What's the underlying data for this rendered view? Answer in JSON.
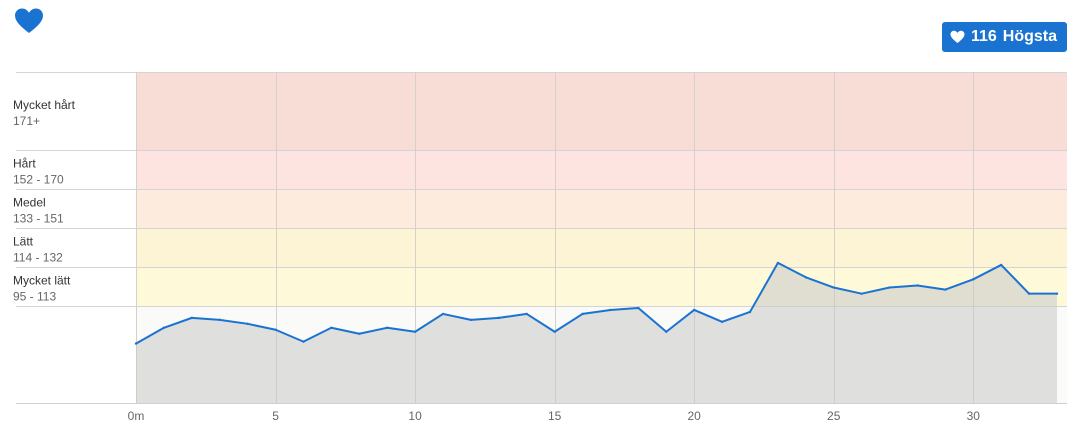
{
  "header": {
    "max_badge_value": "116",
    "max_badge_label": "Högsta",
    "accent": "#1a73d1"
  },
  "zones": [
    {
      "name": "Mycket hårt",
      "range": "171+",
      "from": 171,
      "to": 190,
      "color": "#f8ddd7"
    },
    {
      "name": "Hårt",
      "range": "152 - 170",
      "from": 152,
      "to": 171,
      "color": "#fde4e1"
    },
    {
      "name": "Medel",
      "range": "133 - 151",
      "from": 133,
      "to": 152,
      "color": "#fdebdd"
    },
    {
      "name": "Lätt",
      "range": "114 - 132",
      "from": 114,
      "to": 133,
      "color": "#fdf4d6"
    },
    {
      "name": "Mycket lätt",
      "range": "95 - 113",
      "from": 95,
      "to": 114,
      "color": "#fdf9d9"
    }
  ],
  "chart_data": {
    "type": "area",
    "x_unit_label": "m",
    "x_ticks": [
      0,
      5,
      10,
      15,
      20,
      25,
      30
    ],
    "x_tick_labels": [
      "0m",
      "5",
      "10",
      "15",
      "20",
      "25",
      "30"
    ],
    "xlim": [
      0,
      33
    ],
    "ylim": [
      46,
      190
    ],
    "x": [
      0,
      1,
      2,
      3,
      4,
      5,
      6,
      7,
      8,
      9,
      10,
      11,
      12,
      13,
      14,
      15,
      16,
      17,
      18,
      19,
      20,
      21,
      22,
      23,
      24,
      25,
      26,
      27,
      28,
      29,
      30,
      31,
      32,
      33
    ],
    "values": [
      76,
      84,
      89,
      88,
      86,
      83,
      77,
      84,
      81,
      84,
      82,
      91,
      88,
      89,
      91,
      82,
      91,
      93,
      94,
      82,
      93,
      87,
      92,
      116,
      109,
      104,
      101,
      104,
      105,
      103,
      108,
      115,
      101,
      101
    ],
    "line_color": "#1a73d1",
    "below_zone_color": "#fafaf8",
    "fill_color": "#c8c8c8"
  }
}
